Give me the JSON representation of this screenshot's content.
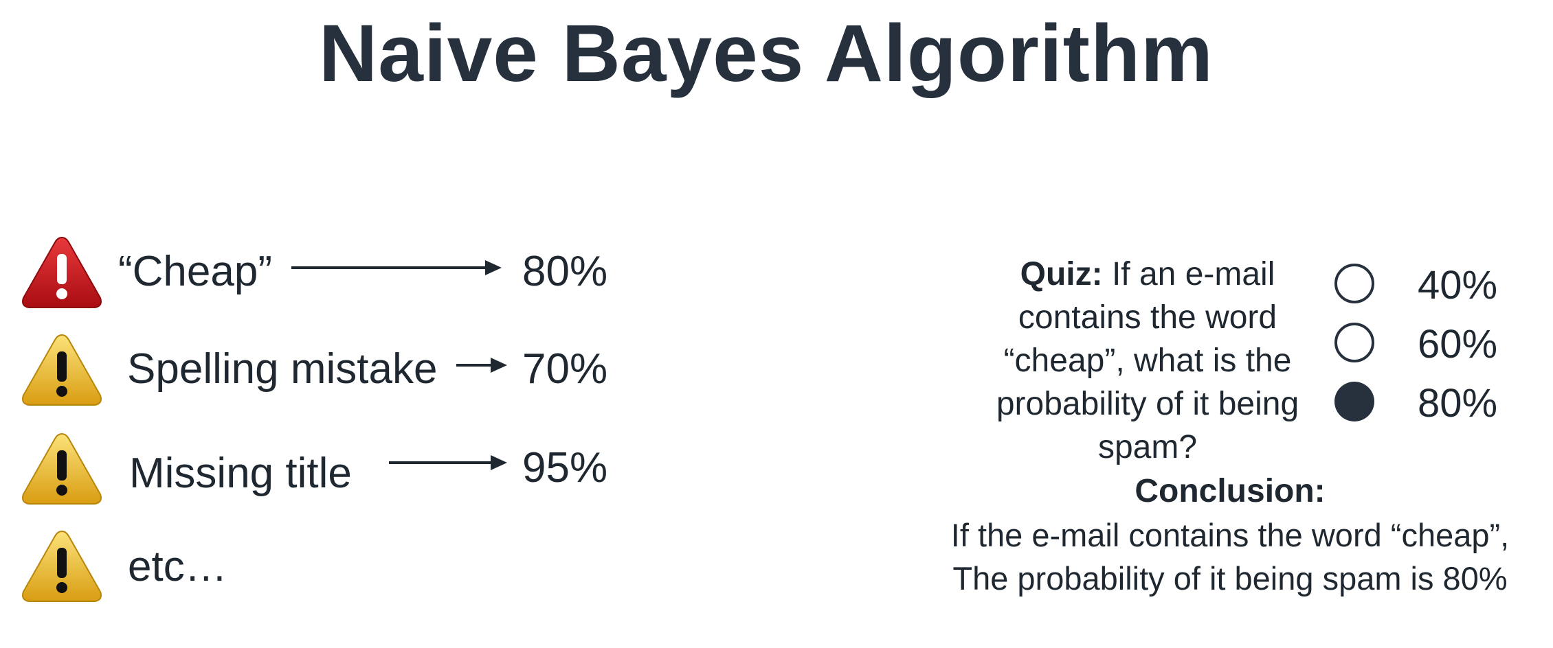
{
  "title": "Naive Bayes Algorithm",
  "signals": [
    {
      "label": "“Cheap”",
      "value": "80%",
      "icon": "red-warning-triangle-icon"
    },
    {
      "label": "Spelling mistake",
      "value": "70%",
      "icon": "yellow-warning-triangle-icon"
    },
    {
      "label": "Missing title",
      "value": "95%",
      "icon": "yellow-warning-triangle-icon"
    },
    {
      "label": "etc…",
      "value": "",
      "icon": "yellow-warning-triangle-icon"
    }
  ],
  "quiz": {
    "prefix": "Quiz:",
    "question": "If an e-mail contains the word “cheap”, what is the probability of it being spam?",
    "options": [
      {
        "label": "40%",
        "selected": false
      },
      {
        "label": "60%",
        "selected": false
      },
      {
        "label": "80%",
        "selected": true
      }
    ]
  },
  "conclusion": {
    "title": "Conclusion:",
    "line1": "If the e-mail contains the word “cheap”,",
    "line2": "The probability of it being spam is 80%"
  },
  "colors": {
    "text": "#1f2830",
    "title": "#26313d",
    "alert_red": "#c8161b",
    "warning_yellow": "#f2c230"
  }
}
